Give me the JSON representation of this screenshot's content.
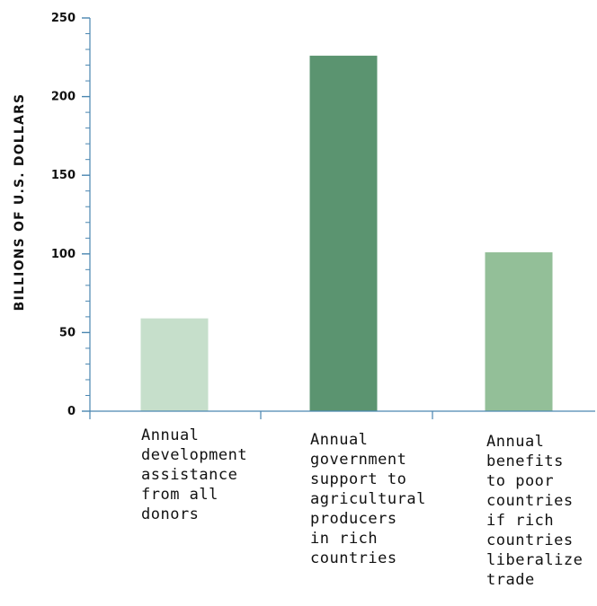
{
  "chart_data": {
    "type": "bar",
    "ylabel": "BILLIONS OF U.S. DOLLARS",
    "ylim": [
      0,
      250
    ],
    "yticks": [
      "0",
      "50",
      "100",
      "150",
      "200",
      "250"
    ],
    "categories": [
      "Annual development assistance from all donors",
      "Annual government support to agricultural producers in rich countries",
      "Annual benefits to poor countries if rich countries liberalize trade"
    ],
    "category_lines": [
      [
        "Annual",
        "development",
        "assistance",
        "from all",
        "donors"
      ],
      [
        "Annual",
        "government",
        "support to",
        "agricultural",
        "producers",
        "in rich",
        "countries"
      ],
      [
        "Annual",
        "benefits",
        "to poor",
        "countries",
        "if rich",
        "countries",
        "liberalize",
        "trade"
      ]
    ],
    "values": [
      59,
      226,
      101
    ],
    "colors": [
      "#c6dfcb",
      "#5b9470",
      "#93bf98"
    ],
    "axis_color": "#4a86b0"
  }
}
